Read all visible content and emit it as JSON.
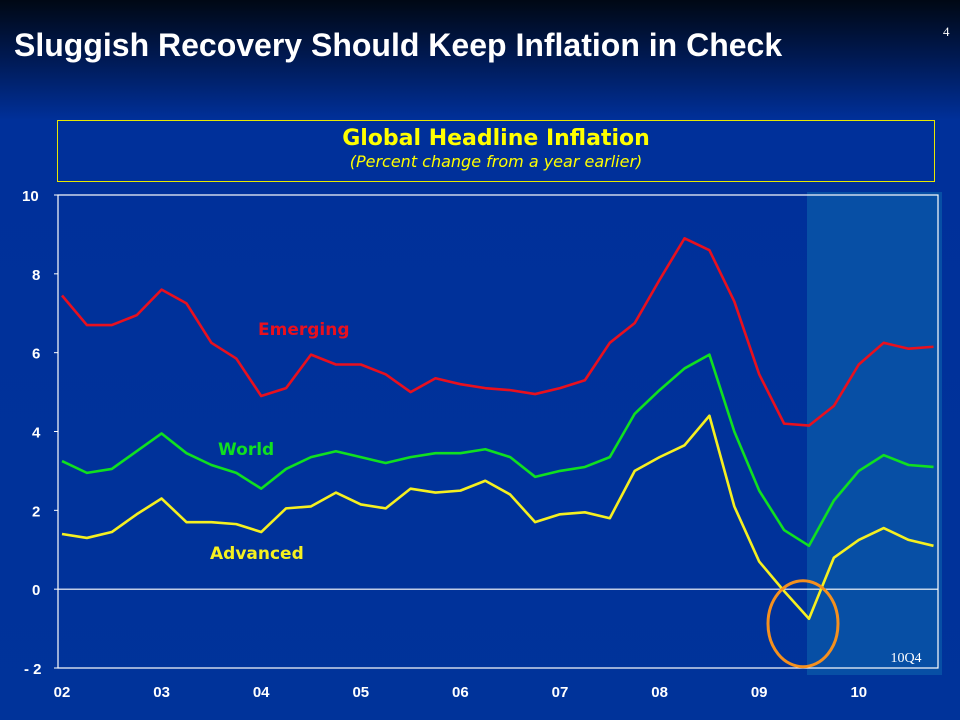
{
  "slide": {
    "title": "Sluggish Recovery Should Keep Inflation in Check",
    "page_number": "4"
  },
  "chart_data": {
    "type": "line",
    "title": "Global Headline Inflation",
    "subtitle": "(Percent change from a year earlier)",
    "xlabel": "",
    "ylabel": "",
    "x_tick_labels": [
      "02",
      "03",
      "04",
      "05",
      "06",
      "07",
      "08",
      "09",
      "10"
    ],
    "y_ticks": [
      10,
      8,
      6,
      4,
      2,
      0,
      -2
    ],
    "ylim": [
      -2,
      10
    ],
    "x_start": "2002Q1",
    "x_end": "2010Q4",
    "frequency": "quarterly",
    "shaded_region": {
      "from": "2009Q3",
      "to": "2010Q4",
      "label": "10Q4",
      "color": "#0a5aa8"
    },
    "highlight_circle": {
      "at": "2009Q3",
      "series": "Advanced",
      "color": "#f5901e"
    },
    "series": [
      {
        "name": "Emerging",
        "color": "#e8101e",
        "values": [
          7.45,
          6.7,
          6.7,
          6.95,
          7.6,
          7.25,
          6.25,
          5.85,
          4.9,
          5.1,
          5.95,
          5.7,
          5.7,
          5.45,
          5.0,
          5.35,
          5.2,
          5.1,
          5.05,
          4.95,
          5.1,
          5.3,
          6.25,
          6.75,
          7.85,
          8.9,
          8.6,
          7.3,
          5.45,
          4.2,
          4.15,
          4.65,
          5.7,
          6.25,
          6.1,
          6.15
        ]
      },
      {
        "name": "World",
        "color": "#10e020",
        "values": [
          3.25,
          2.95,
          3.05,
          3.5,
          3.95,
          3.45,
          3.15,
          2.95,
          2.55,
          3.05,
          3.35,
          3.5,
          3.35,
          3.2,
          3.35,
          3.45,
          3.45,
          3.55,
          3.35,
          2.85,
          3.0,
          3.1,
          3.35,
          4.45,
          5.05,
          5.6,
          5.95,
          4.0,
          2.5,
          1.5,
          1.1,
          2.25,
          3.0,
          3.4,
          3.15,
          3.1
        ]
      },
      {
        "name": "Advanced",
        "color": "#f5f020",
        "values": [
          1.4,
          1.3,
          1.45,
          1.9,
          2.3,
          1.7,
          1.7,
          1.65,
          1.45,
          2.05,
          2.1,
          2.45,
          2.15,
          2.05,
          2.55,
          2.45,
          2.5,
          2.75,
          2.4,
          1.7,
          1.9,
          1.95,
          1.8,
          3.0,
          3.35,
          3.65,
          4.4,
          2.1,
          0.7,
          -0.05,
          -0.75,
          0.8,
          1.25,
          1.55,
          1.25,
          1.1
        ]
      }
    ],
    "grid": false,
    "legend": "inline labels"
  }
}
